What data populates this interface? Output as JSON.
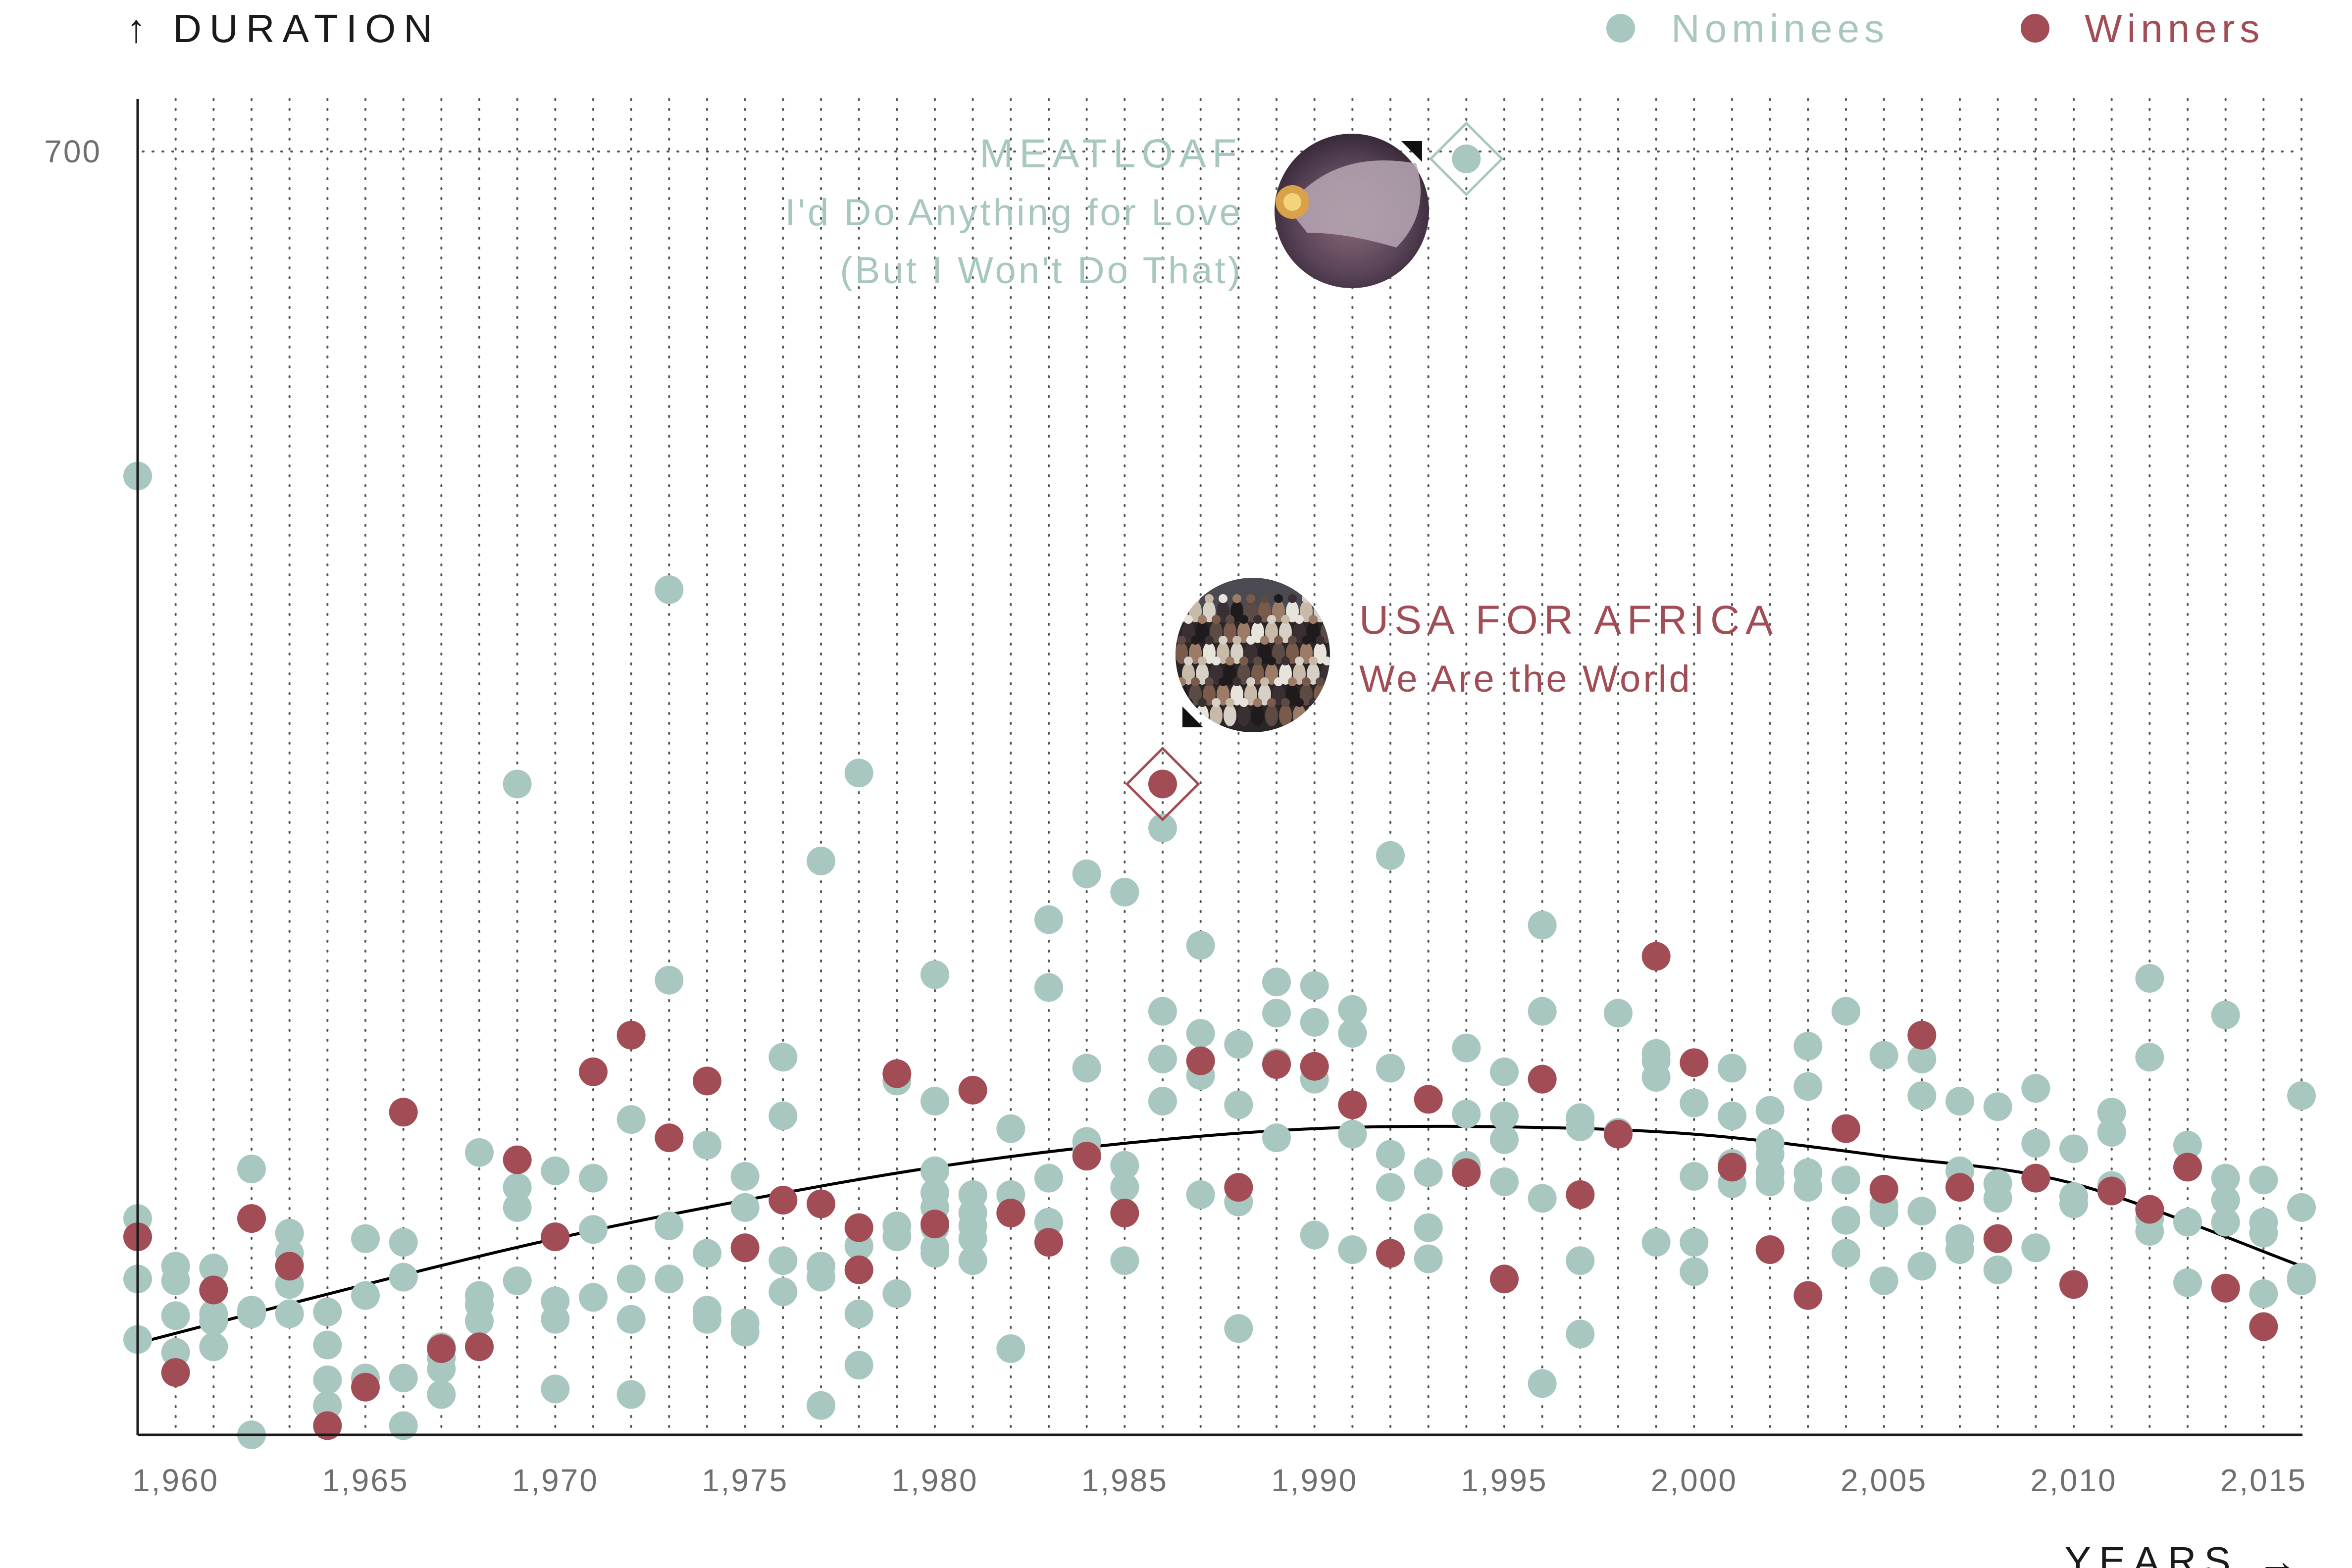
{
  "chart_data": {
    "type": "scatter",
    "ylabel": "↑ DURATION",
    "xlabel": "YEARS →",
    "xlim": [
      1959,
      2016
    ],
    "ylim": [
      0,
      700
    ],
    "x_ticks": [
      "1,960",
      "1,965",
      "1,970",
      "1,975",
      "1,980",
      "1,985",
      "1,990",
      "1,995",
      "2,000",
      "2,005",
      "2,010",
      "2,015"
    ],
    "y_ticks": [
      "700"
    ],
    "grid": "vertical dotted lines each year; dotted line at 700",
    "legend": {
      "placement": "top-right",
      "entries": [
        "Nominees",
        "Winners"
      ]
    },
    "colors": {
      "Nominees": "#a8c7c0",
      "Winners": "#a24d55",
      "trend": "#000000",
      "axis": "#1a1a1a"
    },
    "series": [
      {
        "name": "Nominees",
        "points": [
          [
            1959,
            52
          ],
          [
            1959,
            85
          ],
          [
            1959,
            118
          ],
          [
            1959,
            523
          ],
          [
            1960,
            45
          ],
          [
            1960,
            65
          ],
          [
            1960,
            84
          ],
          [
            1960,
            92
          ],
          [
            1961,
            62
          ],
          [
            1961,
            48
          ],
          [
            1961,
            91
          ],
          [
            1961,
            66
          ],
          [
            1962,
            0
          ],
          [
            1962,
            66
          ],
          [
            1962,
            145
          ],
          [
            1962,
            68
          ],
          [
            1963,
            110
          ],
          [
            1963,
            99
          ],
          [
            1963,
            66
          ],
          [
            1963,
            82
          ],
          [
            1964,
            67
          ],
          [
            1964,
            49
          ],
          [
            1964,
            30
          ],
          [
            1964,
            16
          ],
          [
            1965,
            31
          ],
          [
            1965,
            76
          ],
          [
            1965,
            107
          ],
          [
            1966,
            5
          ],
          [
            1966,
            31
          ],
          [
            1966,
            86
          ],
          [
            1966,
            105
          ],
          [
            1967,
            48
          ],
          [
            1967,
            42
          ],
          [
            1967,
            36
          ],
          [
            1967,
            22
          ],
          [
            1968,
            76
          ],
          [
            1968,
            62
          ],
          [
            1968,
            71
          ],
          [
            1968,
            154
          ],
          [
            1969,
            84
          ],
          [
            1969,
            124
          ],
          [
            1969,
            135
          ],
          [
            1969,
            355
          ],
          [
            1970,
            25
          ],
          [
            1970,
            63
          ],
          [
            1970,
            73
          ],
          [
            1970,
            144
          ],
          [
            1971,
            75
          ],
          [
            1971,
            112
          ],
          [
            1971,
            140
          ],
          [
            1972,
            22
          ],
          [
            1972,
            63
          ],
          [
            1972,
            85
          ],
          [
            1972,
            172
          ],
          [
            1973,
            85
          ],
          [
            1973,
            114
          ],
          [
            1973,
            248
          ],
          [
            1973,
            461
          ],
          [
            1974,
            63
          ],
          [
            1974,
            68
          ],
          [
            1974,
            99
          ],
          [
            1974,
            158
          ],
          [
            1975,
            56
          ],
          [
            1975,
            61
          ],
          [
            1975,
            124
          ],
          [
            1975,
            141
          ],
          [
            1976,
            78
          ],
          [
            1976,
            95
          ],
          [
            1976,
            174
          ],
          [
            1976,
            206
          ],
          [
            1977,
            16
          ],
          [
            1977,
            86
          ],
          [
            1977,
            92
          ],
          [
            1977,
            313
          ],
          [
            1978,
            38
          ],
          [
            1978,
            66
          ],
          [
            1978,
            103
          ],
          [
            1978,
            361
          ],
          [
            1979,
            77
          ],
          [
            1979,
            108
          ],
          [
            1979,
            114
          ],
          [
            1979,
            193
          ],
          [
            1980,
            99
          ],
          [
            1980,
            102
          ],
          [
            1980,
            113
          ],
          [
            1980,
            124
          ],
          [
            1980,
            132
          ],
          [
            1980,
            144
          ],
          [
            1980,
            182
          ],
          [
            1980,
            251
          ],
          [
            1981,
            95
          ],
          [
            1981,
            107
          ],
          [
            1981,
            114
          ],
          [
            1981,
            121
          ],
          [
            1981,
            131
          ],
          [
            1982,
            47
          ],
          [
            1982,
            121
          ],
          [
            1982,
            131
          ],
          [
            1982,
            167
          ],
          [
            1983,
            116
          ],
          [
            1983,
            140
          ],
          [
            1983,
            244
          ],
          [
            1983,
            281
          ],
          [
            1984,
            155
          ],
          [
            1984,
            160
          ],
          [
            1984,
            200
          ],
          [
            1984,
            306
          ],
          [
            1985,
            95
          ],
          [
            1985,
            135
          ],
          [
            1985,
            147
          ],
          [
            1985,
            296
          ],
          [
            1986,
            182
          ],
          [
            1986,
            205
          ],
          [
            1986,
            231
          ],
          [
            1986,
            331
          ],
          [
            1987,
            131
          ],
          [
            1987,
            196
          ],
          [
            1987,
            219
          ],
          [
            1987,
            267
          ],
          [
            1988,
            58
          ],
          [
            1988,
            127
          ],
          [
            1988,
            180
          ],
          [
            1988,
            213
          ],
          [
            1989,
            162
          ],
          [
            1989,
            203
          ],
          [
            1989,
            230
          ],
          [
            1989,
            247
          ],
          [
            1990,
            109
          ],
          [
            1990,
            194
          ],
          [
            1990,
            225
          ],
          [
            1990,
            245
          ],
          [
            1991,
            101
          ],
          [
            1991,
            164
          ],
          [
            1991,
            219
          ],
          [
            1991,
            232
          ],
          [
            1992,
            135
          ],
          [
            1992,
            153
          ],
          [
            1992,
            200
          ],
          [
            1992,
            316
          ],
          [
            1993,
            96
          ],
          [
            1993,
            113
          ],
          [
            1993,
            143
          ],
          [
            1994,
            147
          ],
          [
            1994,
            175
          ],
          [
            1994,
            211
          ],
          [
            1994,
            696
          ],
          [
            1995,
            138
          ],
          [
            1995,
            161
          ],
          [
            1995,
            174
          ],
          [
            1995,
            198
          ],
          [
            1996,
            28
          ],
          [
            1996,
            129
          ],
          [
            1996,
            231
          ],
          [
            1996,
            278
          ],
          [
            1997,
            55
          ],
          [
            1997,
            95
          ],
          [
            1997,
            168
          ],
          [
            1997,
            173
          ],
          [
            1998,
            230
          ],
          [
            1998,
            165
          ],
          [
            1999,
            105
          ],
          [
            1999,
            195
          ],
          [
            1999,
            204
          ],
          [
            1999,
            208
          ],
          [
            2000,
            89
          ],
          [
            2000,
            105
          ],
          [
            2000,
            141
          ],
          [
            2000,
            181
          ],
          [
            2001,
            137
          ],
          [
            2001,
            148
          ],
          [
            2001,
            174
          ],
          [
            2001,
            200
          ],
          [
            2002,
            138
          ],
          [
            2002,
            143
          ],
          [
            2002,
            153
          ],
          [
            2002,
            159
          ],
          [
            2002,
            177
          ],
          [
            2003,
            135
          ],
          [
            2003,
            143
          ],
          [
            2003,
            190
          ],
          [
            2003,
            212
          ],
          [
            2004,
            99
          ],
          [
            2004,
            117
          ],
          [
            2004,
            139
          ],
          [
            2004,
            231
          ],
          [
            2005,
            84
          ],
          [
            2005,
            121
          ],
          [
            2005,
            125
          ],
          [
            2005,
            207
          ],
          [
            2006,
            92
          ],
          [
            2006,
            122
          ],
          [
            2006,
            185
          ],
          [
            2006,
            205
          ],
          [
            2007,
            101
          ],
          [
            2007,
            107
          ],
          [
            2007,
            144
          ],
          [
            2007,
            182
          ],
          [
            2008,
            90
          ],
          [
            2008,
            129
          ],
          [
            2008,
            137
          ],
          [
            2008,
            179
          ],
          [
            2009,
            102
          ],
          [
            2009,
            159
          ],
          [
            2009,
            189
          ],
          [
            2010,
            126
          ],
          [
            2010,
            130
          ],
          [
            2010,
            156
          ],
          [
            2011,
            136
          ],
          [
            2011,
            165
          ],
          [
            2011,
            176
          ],
          [
            2012,
            111
          ],
          [
            2012,
            118
          ],
          [
            2012,
            206
          ],
          [
            2012,
            249
          ],
          [
            2013,
            83
          ],
          [
            2013,
            116
          ],
          [
            2013,
            158
          ],
          [
            2014,
            116
          ],
          [
            2014,
            128
          ],
          [
            2014,
            140
          ],
          [
            2014,
            229
          ],
          [
            2014,
            116
          ],
          [
            2015,
            77
          ],
          [
            2015,
            110
          ],
          [
            2015,
            116
          ],
          [
            2015,
            139
          ],
          [
            2016,
            84
          ],
          [
            2016,
            86
          ],
          [
            2016,
            124
          ],
          [
            2016,
            185
          ]
        ]
      },
      {
        "name": "Winners",
        "points": [
          [
            1959,
            108
          ],
          [
            1960,
            34
          ],
          [
            1961,
            79
          ],
          [
            1962,
            118
          ],
          [
            1963,
            92
          ],
          [
            1964,
            5
          ],
          [
            1965,
            26
          ],
          [
            1966,
            176
          ],
          [
            1967,
            47
          ],
          [
            1968,
            48
          ],
          [
            1969,
            150
          ],
          [
            1970,
            108
          ],
          [
            1971,
            198
          ],
          [
            1972,
            218
          ],
          [
            1973,
            162
          ],
          [
            1974,
            193
          ],
          [
            1975,
            102
          ],
          [
            1976,
            128
          ],
          [
            1977,
            126
          ],
          [
            1978,
            90
          ],
          [
            1978,
            113
          ],
          [
            1979,
            197
          ],
          [
            1980,
            115
          ],
          [
            1981,
            188
          ],
          [
            1982,
            121
          ],
          [
            1983,
            105
          ],
          [
            1984,
            152
          ],
          [
            1985,
            121
          ],
          [
            1986,
            355
          ],
          [
            1987,
            204
          ],
          [
            1988,
            135
          ],
          [
            1989,
            202
          ],
          [
            1990,
            201
          ],
          [
            1991,
            180
          ],
          [
            1992,
            99
          ],
          [
            1993,
            183
          ],
          [
            1994,
            143
          ],
          [
            1995,
            85
          ],
          [
            1996,
            194
          ],
          [
            1997,
            131
          ],
          [
            1998,
            164
          ],
          [
            1999,
            261
          ],
          [
            2000,
            203
          ],
          [
            2001,
            146
          ],
          [
            2002,
            101
          ],
          [
            2003,
            76
          ],
          [
            2004,
            167
          ],
          [
            2005,
            134
          ],
          [
            2006,
            218
          ],
          [
            2007,
            135
          ],
          [
            2008,
            107
          ],
          [
            2009,
            140
          ],
          [
            2010,
            82
          ],
          [
            2011,
            133
          ],
          [
            2012,
            123
          ],
          [
            2013,
            146
          ],
          [
            2014,
            80
          ],
          [
            2015,
            59
          ]
        ]
      }
    ],
    "trend_line": {
      "type": "quadratic fit",
      "points": [
        [
          1959,
          50
        ],
        [
          1965,
          82
        ],
        [
          1970,
          107
        ],
        [
          1975,
          128
        ],
        [
          1980,
          146
        ],
        [
          1985,
          159
        ],
        [
          1990,
          167
        ],
        [
          1995,
          168
        ],
        [
          2000,
          164
        ],
        [
          2005,
          152
        ],
        [
          2010,
          137
        ],
        [
          2016,
          92
        ]
      ]
    },
    "highlights": [
      {
        "series": "Nominees",
        "x": 1994,
        "y": 696,
        "artist": "MEATLOAF",
        "title_lines": [
          "I'd Do Anything for Love",
          "(But I Won't Do That)"
        ],
        "color": "#a8c7c0"
      },
      {
        "series": "Winners",
        "x": 1986,
        "y": 355,
        "artist": "USA FOR AFRICA",
        "title_lines": [
          "We Are the World"
        ],
        "color": "#a24d55"
      }
    ]
  }
}
